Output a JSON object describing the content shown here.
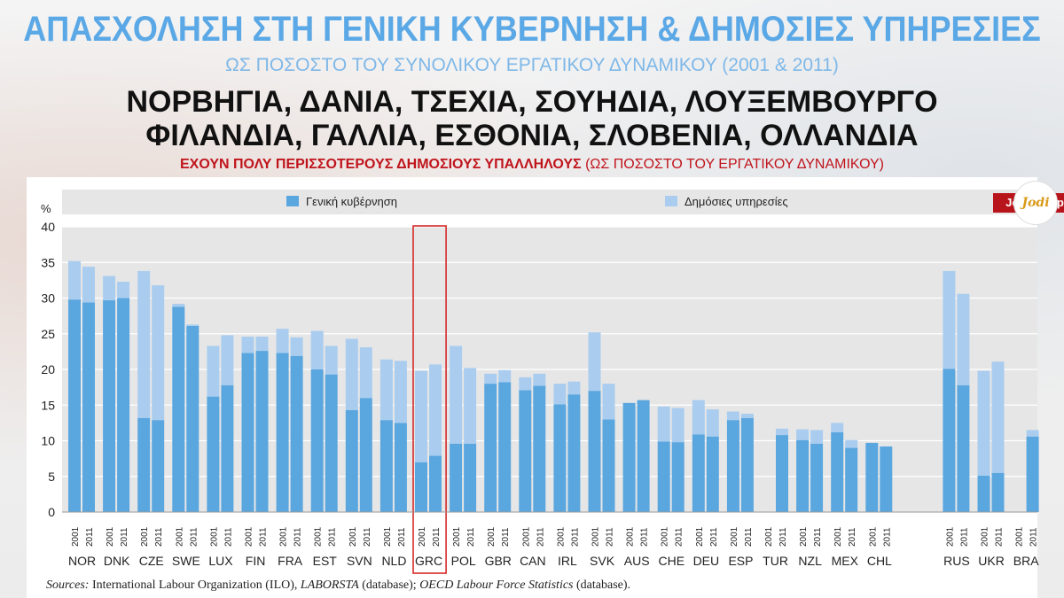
{
  "header": {
    "title": "ΑΠΑΣΧΟΛΗΣΗ ΣΤΗ ΓΕΝΙΚΗ ΚΥΒΕΡΝΗΣΗ & ΔΗΜΟΣΙΕΣ ΥΠΗΡΕΣΙΕΣ",
    "subtitle": "ΩΣ ΠΟΣΟΣΤΟ ΤΟΥ ΣΥΝΟΛΙΚΟΥ ΕΡΓΑΤΙΚΟΥ ΔΥΝΑΜΙΚΟΥ (2001 & 2011)",
    "headline_1": "ΝΟΡΒΗΓΙΑ, ΔΑΝΙΑ, ΤΣΕΧΙΑ, ΣΟΥΗΔΙΑ, ΛΟΥΞΕΜΒΟΥΡΓΟ",
    "headline_2": "ΦΙΛΑΝΔΙΑ, ΓΑΛΛΙΑ, ΕΣΘΟΝΙΑ, ΣΛΟΒΕΝΙΑ, ΟΛΛΑΝΔΙΑ",
    "red_line_bold": "ΕΧΟΥΝ ΠΟΛΥ ΠΕΡΙΣΣΟΤΕΡΟΥΣ ΔΗΜΟΣΙΟΥΣ ΥΠΑΛΛΗΛΟΥΣ",
    "red_line_rest": "(ΩΣ ΠΟΣΟΣΤΟ ΤΟΥ ΕΡΓΑΤΙΚΟΥ ΔΥΝΑΜΙΚΟΥ)"
  },
  "brand": {
    "label": "Jo Di Graphics",
    "logo_text": "Jodi"
  },
  "sources": {
    "prefix": "Sources:",
    "part1": "International Labour Organization (ILO),",
    "part2": "LABORSTA",
    "part3": "(database);",
    "part4": "OECD Labour Force Statistics",
    "part5": "(database)."
  },
  "colors": {
    "general_government": "#5aa6df",
    "public_services": "#aacdef",
    "highlight": "#d42a2a"
  },
  "chart_data": {
    "type": "bar",
    "stacked": true,
    "ylabel": "%",
    "ylim": [
      0,
      40
    ],
    "yticks": [
      0,
      5,
      10,
      15,
      20,
      25,
      30,
      35,
      40
    ],
    "legend": [
      "Γενική κυβέρνηση",
      "Δημόσιες υπηρεσίες"
    ],
    "legend_position": "top",
    "highlight_country": "GRC",
    "years": [
      "2001",
      "2011"
    ],
    "countries": [
      {
        "code": "NOR",
        "gen": [
          29.8,
          29.4
        ],
        "pub": [
          5.4,
          5.0
        ]
      },
      {
        "code": "DNK",
        "gen": [
          29.7,
          30.0
        ],
        "pub": [
          3.4,
          2.3
        ]
      },
      {
        "code": "CZE",
        "gen": [
          13.2,
          12.9
        ],
        "pub": [
          20.6,
          18.9
        ]
      },
      {
        "code": "SWE",
        "gen": [
          28.8,
          26.1
        ],
        "pub": [
          0.4,
          0.2
        ]
      },
      {
        "code": "LUX",
        "gen": [
          16.2,
          17.8
        ],
        "pub": [
          7.1,
          7.0
        ]
      },
      {
        "code": "FIN",
        "gen": [
          22.3,
          22.6
        ],
        "pub": [
          2.3,
          2.0
        ]
      },
      {
        "code": "FRA",
        "gen": [
          22.3,
          21.9
        ],
        "pub": [
          3.4,
          2.6
        ]
      },
      {
        "code": "EST",
        "gen": [
          20.0,
          19.3
        ],
        "pub": [
          5.4,
          4.0
        ]
      },
      {
        "code": "SVN",
        "gen": [
          14.3,
          16.0
        ],
        "pub": [
          10.0,
          7.1
        ]
      },
      {
        "code": "NLD",
        "gen": [
          12.9,
          12.5
        ],
        "pub": [
          8.5,
          8.7
        ]
      },
      {
        "code": "GRC",
        "gen": [
          7.0,
          7.9
        ],
        "pub": [
          12.8,
          12.8
        ]
      },
      {
        "code": "POL",
        "gen": [
          9.6,
          9.6
        ],
        "pub": [
          13.7,
          10.6
        ]
      },
      {
        "code": "GBR",
        "gen": [
          18.0,
          18.2
        ],
        "pub": [
          1.4,
          1.7
        ]
      },
      {
        "code": "CAN",
        "gen": [
          17.1,
          17.7
        ],
        "pub": [
          1.8,
          1.7
        ]
      },
      {
        "code": "IRL",
        "gen": [
          15.1,
          16.5
        ],
        "pub": [
          2.9,
          1.8
        ]
      },
      {
        "code": "SVK",
        "gen": [
          17.0,
          13.0
        ],
        "pub": [
          8.2,
          5.0
        ]
      },
      {
        "code": "AUS",
        "gen": [
          15.3,
          15.7
        ],
        "pub": [
          0,
          0
        ]
      },
      {
        "code": "CHE",
        "gen": [
          9.9,
          9.8
        ],
        "pub": [
          4.9,
          4.8
        ]
      },
      {
        "code": "DEU",
        "gen": [
          10.9,
          10.6
        ],
        "pub": [
          4.8,
          3.8
        ]
      },
      {
        "code": "ESP",
        "gen": [
          12.9,
          13.2
        ],
        "pub": [
          1.2,
          0.6
        ]
      },
      {
        "code": "TUR",
        "gen": [
          null,
          10.8
        ],
        "pub": [
          null,
          0.9
        ]
      },
      {
        "code": "NZL",
        "gen": [
          10.1,
          9.6
        ],
        "pub": [
          1.5,
          1.9
        ]
      },
      {
        "code": "MEX",
        "gen": [
          11.2,
          9.0
        ],
        "pub": [
          1.3,
          1.1
        ]
      },
      {
        "code": "CHL",
        "gen": [
          9.7,
          9.2
        ],
        "pub": [
          0,
          0
        ]
      },
      {
        "code": "RUS",
        "gen": [
          20.1,
          17.8
        ],
        "pub": [
          13.7,
          12.8
        ]
      },
      {
        "code": "UKR",
        "gen": [
          5.1,
          5.5
        ],
        "pub": [
          14.7,
          15.6
        ]
      },
      {
        "code": "BRA",
        "gen": [
          null,
          10.6
        ],
        "pub": [
          null,
          0.9
        ]
      }
    ]
  }
}
